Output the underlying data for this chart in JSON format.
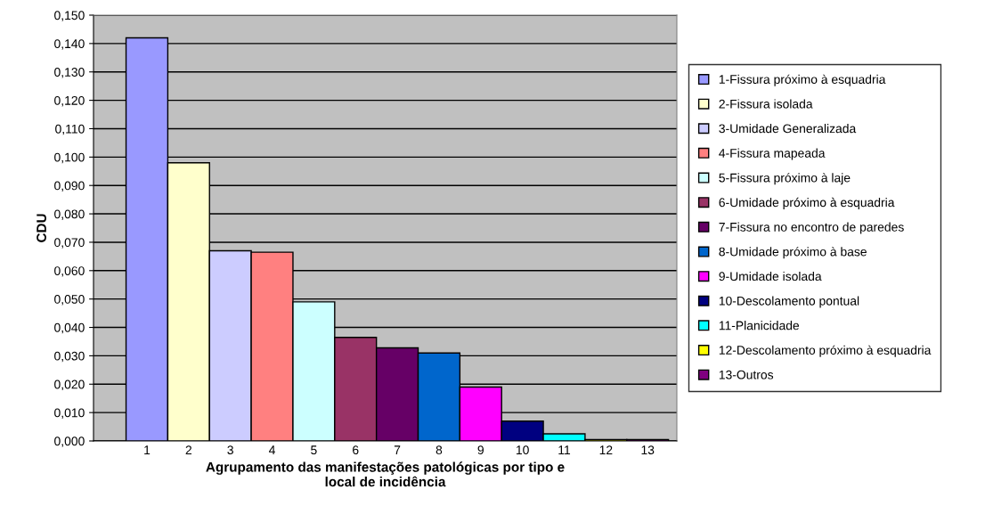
{
  "chart_data": {
    "type": "bar",
    "xlabel": "Agrupamento das manifestações patológicas por tipo e\nlocal de incidência",
    "ylabel": "CDU",
    "categories": [
      "1",
      "2",
      "3",
      "4",
      "5",
      "6",
      "7",
      "8",
      "9",
      "10",
      "11",
      "12",
      "13"
    ],
    "series": [
      {
        "name": "1-Fissura próximo à esquadria",
        "color": "#9999ff",
        "values": [
          0.142,
          null,
          null,
          null,
          null,
          null,
          null,
          null,
          null,
          null,
          null,
          null,
          null
        ]
      },
      {
        "name": "2-Fissura isolada",
        "color": "#ffffcc",
        "values": [
          null,
          0.098,
          null,
          null,
          null,
          null,
          null,
          null,
          null,
          null,
          null,
          null,
          null
        ]
      },
      {
        "name": "3-Umidade Generalizada",
        "color": "#ccccff",
        "values": [
          null,
          null,
          0.067,
          null,
          null,
          null,
          null,
          null,
          null,
          null,
          null,
          null,
          null
        ]
      },
      {
        "name": "4-Fissura mapeada",
        "color": "#ff8080",
        "values": [
          null,
          null,
          null,
          0.0665,
          null,
          null,
          null,
          null,
          null,
          null,
          null,
          null,
          null
        ]
      },
      {
        "name": "5-Fissura próximo à laje",
        "color": "#ccffff",
        "values": [
          null,
          null,
          null,
          null,
          0.049,
          null,
          null,
          null,
          null,
          null,
          null,
          null,
          null
        ]
      },
      {
        "name": "6-Umidade próximo à esquadria",
        "color": "#993366",
        "values": [
          null,
          null,
          null,
          null,
          null,
          0.0365,
          null,
          null,
          null,
          null,
          null,
          null,
          null
        ]
      },
      {
        "name": "7-Fissura no encontro de paredes",
        "color": "#660066",
        "values": [
          null,
          null,
          null,
          null,
          null,
          null,
          0.0328,
          null,
          null,
          null,
          null,
          null,
          null
        ]
      },
      {
        "name": "8-Umidade próximo à base",
        "color": "#0066cc",
        "values": [
          null,
          null,
          null,
          null,
          null,
          null,
          null,
          0.031,
          null,
          null,
          null,
          null,
          null
        ]
      },
      {
        "name": "9-Umidade isolada",
        "color": "#ff00ff",
        "values": [
          null,
          null,
          null,
          null,
          null,
          null,
          null,
          null,
          0.019,
          null,
          null,
          null,
          null
        ]
      },
      {
        "name": "10-Descolamento pontual",
        "color": "#000080",
        "values": [
          null,
          null,
          null,
          null,
          null,
          null,
          null,
          null,
          null,
          0.007,
          null,
          null,
          null
        ]
      },
      {
        "name": "11-Planicidade",
        "color": "#00ffff",
        "values": [
          null,
          null,
          null,
          null,
          null,
          null,
          null,
          null,
          null,
          null,
          0.0025,
          null,
          null
        ]
      },
      {
        "name": "12-Descolamento próximo à esquadria",
        "color": "#ffff00",
        "values": [
          null,
          null,
          null,
          null,
          null,
          null,
          null,
          null,
          null,
          null,
          null,
          0.0005,
          null
        ]
      },
      {
        "name": "13-Outros",
        "color": "#800080",
        "values": [
          null,
          null,
          null,
          null,
          null,
          null,
          null,
          null,
          null,
          null,
          null,
          null,
          0.0005
        ]
      }
    ],
    "ylim": [
      0,
      0.15
    ],
    "yticks": [
      {
        "value": 0,
        "label": "0,000"
      },
      {
        "value": 0.01,
        "label": "0,010"
      },
      {
        "value": 0.02,
        "label": "0,020"
      },
      {
        "value": 0.03,
        "label": "0,030"
      },
      {
        "value": 0.04,
        "label": "0,040"
      },
      {
        "value": 0.05,
        "label": "0,050"
      },
      {
        "value": 0.06,
        "label": "0,060"
      },
      {
        "value": 0.07,
        "label": "0,070"
      },
      {
        "value": 0.08,
        "label": "0,080"
      },
      {
        "value": 0.09,
        "label": "0,090"
      },
      {
        "value": 0.1,
        "label": "0,100"
      },
      {
        "value": 0.11,
        "label": "0,110"
      },
      {
        "value": 0.12,
        "label": "0,120"
      },
      {
        "value": 0.13,
        "label": "0,130"
      },
      {
        "value": 0.14,
        "label": "0,140"
      },
      {
        "value": 0.15,
        "label": "0,150"
      }
    ],
    "grid": "y",
    "legend": "right"
  }
}
